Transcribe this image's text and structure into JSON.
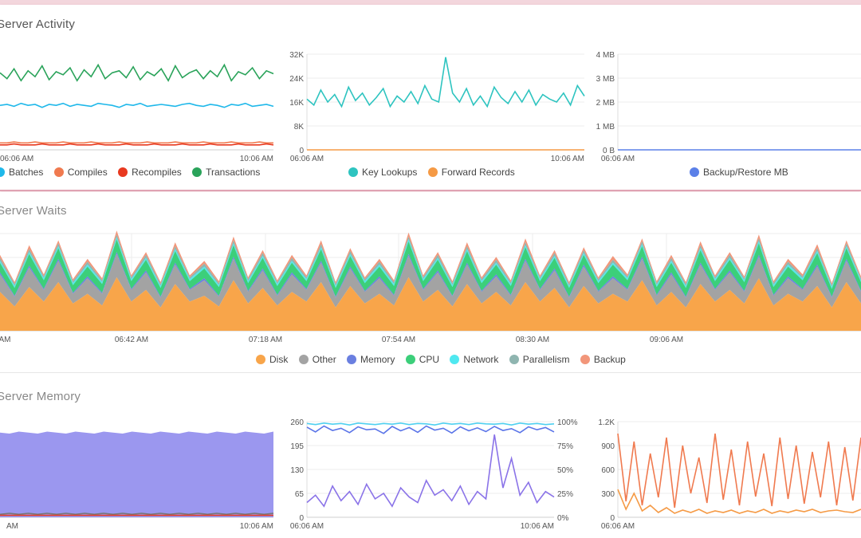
{
  "panels": {
    "activity_title": "Server Activity",
    "waits_title": "Server Waits",
    "memory_title": "Server Memory"
  },
  "chart_data": [
    {
      "id": "activity-1",
      "type": "line",
      "x_tick_labels": [
        "06:06 AM",
        "10:06 AM"
      ],
      "y_range": [
        0,
        100
      ],
      "series": [
        {
          "name": "Batches",
          "color": "#1fb8ea",
          "values": [
            45,
            46,
            44,
            47,
            45,
            46,
            43,
            46,
            45,
            47,
            44,
            46,
            45,
            44,
            47,
            46,
            45,
            43,
            46,
            45,
            47,
            44,
            45,
            46,
            45,
            44,
            46,
            47,
            45,
            44,
            46,
            45,
            43,
            46,
            45,
            47,
            44,
            45,
            46,
            44
          ]
        },
        {
          "name": "Compiles",
          "color": "#f07a4f",
          "values": [
            7,
            7,
            8,
            7,
            7,
            8,
            7,
            7,
            7,
            8,
            7,
            7,
            7,
            8,
            7,
            7,
            7,
            8,
            7,
            7,
            7,
            8,
            7,
            7,
            7,
            8,
            7,
            7,
            7,
            8,
            7,
            7,
            7,
            8,
            7,
            7,
            7,
            8,
            7,
            7
          ]
        },
        {
          "name": "Recompiles",
          "color": "#e8391f",
          "values": [
            5,
            5,
            6,
            5,
            5,
            5,
            6,
            5,
            5,
            5,
            6,
            5,
            5,
            5,
            6,
            5,
            5,
            5,
            6,
            5,
            5,
            5,
            6,
            5,
            5,
            5,
            6,
            5,
            5,
            5,
            6,
            5,
            5,
            5,
            6,
            5,
            5,
            5,
            6,
            5
          ]
        },
        {
          "name": "Transactions",
          "color": "#2aa35a",
          "values": [
            78,
            72,
            82,
            70,
            80,
            74,
            85,
            71,
            79,
            76,
            83,
            70,
            81,
            74,
            86,
            72,
            78,
            80,
            73,
            84,
            71,
            79,
            75,
            82,
            70,
            85,
            73,
            78,
            81,
            72,
            80,
            74,
            86,
            70,
            79,
            76,
            83,
            72,
            80,
            77
          ]
        }
      ]
    },
    {
      "id": "activity-2",
      "type": "line",
      "x_tick_labels": [
        "06:06 AM",
        "10:06 AM"
      ],
      "y_tick_labels": [
        "32K",
        "24K",
        "16K",
        "8K",
        "0"
      ],
      "y_range": [
        0,
        32000
      ],
      "series": [
        {
          "name": "Key Lookups",
          "color": "#2ec4c0",
          "values": [
            17000,
            15000,
            20000,
            16000,
            18500,
            14500,
            21000,
            16500,
            19000,
            15000,
            17500,
            20500,
            14500,
            18000,
            16000,
            19500,
            15500,
            21500,
            17000,
            16000,
            31000,
            19000,
            16000,
            20500,
            15000,
            18000,
            14500,
            21000,
            17500,
            15500,
            19500,
            16000,
            20000,
            15000,
            18500,
            17000,
            16000,
            19000,
            15000,
            21500,
            18000
          ]
        },
        {
          "name": "Forward Records",
          "color": "#f59a45",
          "values": [
            0,
            0,
            0,
            0,
            0,
            0,
            0,
            0,
            0,
            0,
            0,
            0,
            0,
            0,
            0,
            0,
            0,
            0,
            0,
            0,
            0,
            0,
            0,
            0,
            0,
            0,
            0,
            0,
            0,
            0,
            0,
            0,
            0,
            0,
            0,
            0,
            0,
            0,
            0,
            0,
            0
          ]
        }
      ]
    },
    {
      "id": "activity-3",
      "type": "line",
      "x_tick_labels": [
        "06:06 AM"
      ],
      "y_tick_labels": [
        "4 MB",
        "3 MB",
        "2 MB",
        "1 MB",
        "0 B"
      ],
      "y_range": [
        0,
        4
      ],
      "series": [
        {
          "name": "Backup/Restore MB",
          "color": "#5b80e8",
          "values": [
            0,
            0,
            0,
            0,
            0,
            0,
            0,
            0,
            0,
            0,
            0,
            0,
            0,
            0,
            0,
            0,
            0,
            0,
            0,
            0
          ]
        }
      ]
    },
    {
      "id": "waits",
      "type": "area",
      "x_tick_labels": [
        "AM",
        "06:42 AM",
        "07:18 AM",
        "07:54 AM",
        "08:30 AM",
        "09:06 AM"
      ],
      "y_range": [
        0,
        100
      ],
      "stacked": true,
      "series": [
        {
          "name": "Disk",
          "color": "#f8a54a",
          "values": [
            40,
            25,
            45,
            30,
            50,
            28,
            38,
            26,
            55,
            30,
            42,
            24,
            48,
            30,
            36,
            25,
            52,
            28,
            44,
            26,
            40,
            30,
            50,
            24,
            46,
            28,
            38,
            26,
            55,
            30,
            42,
            25,
            48,
            28,
            40,
            26,
            50,
            30,
            44,
            24,
            46,
            28,
            38,
            30,
            52,
            26,
            40,
            24,
            48,
            30,
            42,
            28,
            54,
            26,
            38,
            30,
            46,
            24,
            50,
            28
          ]
        },
        {
          "name": "Other",
          "color": "#a3a3a3",
          "values": [
            18,
            10,
            20,
            12,
            22,
            10,
            16,
            12,
            24,
            12,
            18,
            10,
            20,
            12,
            16,
            10,
            22,
            12,
            18,
            10,
            18,
            12,
            20,
            10,
            18,
            12,
            16,
            10,
            22,
            12,
            18,
            10,
            20,
            12,
            16,
            10,
            22,
            12,
            18,
            10,
            20,
            12,
            16,
            12,
            22,
            10,
            18,
            10,
            20,
            12,
            18,
            12,
            22,
            10,
            16,
            12,
            20,
            10,
            22,
            12
          ]
        },
        {
          "name": "Memory",
          "color": "#6a7fe0",
          "values": [
            2,
            1,
            2,
            1,
            2,
            1,
            2,
            1,
            2,
            1,
            2,
            1,
            2,
            1,
            2,
            1,
            2,
            1,
            2,
            1,
            2,
            1,
            2,
            1,
            2,
            1,
            2,
            1,
            2,
            1,
            2,
            1,
            2,
            1,
            2,
            1,
            2,
            1,
            2,
            1,
            2,
            1,
            2,
            1,
            2,
            1,
            2,
            1,
            2,
            1,
            2,
            1,
            2,
            1,
            2,
            1,
            2,
            1,
            2,
            1
          ]
        },
        {
          "name": "CPU",
          "color": "#3ccf7a",
          "values": [
            10,
            8,
            12,
            9,
            11,
            8,
            10,
            9,
            13,
            8,
            11,
            9,
            12,
            8,
            10,
            9,
            12,
            8,
            11,
            9,
            10,
            8,
            12,
            9,
            11,
            8,
            10,
            9,
            13,
            8,
            11,
            9,
            12,
            8,
            10,
            9,
            12,
            8,
            11,
            9,
            10,
            8,
            12,
            9,
            11,
            8,
            10,
            9,
            13,
            8,
            11,
            9,
            12,
            8,
            10,
            9,
            12,
            8,
            11,
            9
          ]
        },
        {
          "name": "Network",
          "color": "#4fe8f0",
          "values": [
            2,
            2,
            2,
            2,
            2,
            2,
            2,
            2,
            2,
            2,
            2,
            2,
            2,
            2,
            2,
            2,
            2,
            2,
            2,
            2,
            2,
            2,
            2,
            2,
            2,
            2,
            2,
            2,
            2,
            2,
            2,
            2,
            2,
            2,
            2,
            2,
            2,
            2,
            2,
            2,
            2,
            2,
            2,
            2,
            2,
            2,
            2,
            2,
            2,
            2,
            2,
            2,
            2,
            2,
            2,
            2,
            2,
            2,
            2,
            2
          ]
        },
        {
          "name": "Parallelism",
          "color": "#8fb5b0",
          "values": [
            3,
            2,
            3,
            2,
            3,
            2,
            3,
            2,
            3,
            2,
            3,
            2,
            3,
            2,
            3,
            2,
            3,
            2,
            3,
            2,
            3,
            2,
            3,
            2,
            3,
            2,
            3,
            2,
            3,
            2,
            3,
            2,
            3,
            2,
            3,
            2,
            3,
            2,
            3,
            2,
            3,
            2,
            3,
            2,
            3,
            2,
            3,
            2,
            3,
            2,
            3,
            2,
            3,
            2,
            3,
            2,
            3,
            2,
            3,
            2
          ]
        },
        {
          "name": "Backup",
          "color": "#f2967a",
          "values": [
            3,
            2,
            4,
            2,
            3,
            2,
            3,
            2,
            4,
            2,
            3,
            2,
            4,
            2,
            3,
            2,
            4,
            2,
            3,
            2,
            3,
            2,
            4,
            2,
            3,
            2,
            3,
            2,
            4,
            2,
            3,
            2,
            4,
            2,
            3,
            2,
            4,
            2,
            3,
            2,
            3,
            2,
            4,
            2,
            3,
            2,
            3,
            2,
            4,
            2,
            3,
            2,
            4,
            2,
            3,
            2,
            4,
            2,
            3,
            2
          ]
        }
      ]
    },
    {
      "id": "memory-1",
      "type": "area",
      "x_tick_labels": [
        "AM",
        "10:06 AM"
      ],
      "y_range": [
        0,
        100
      ],
      "series": [
        {
          "name": "",
          "color": "#9b97ef",
          "values": [
            85,
            84,
            86,
            85,
            84,
            86,
            85,
            84,
            86,
            85,
            84,
            86,
            85,
            84,
            86,
            85,
            84,
            86,
            85,
            84,
            86,
            85,
            84,
            86,
            85,
            84,
            86,
            85,
            84,
            86
          ]
        },
        {
          "name": "",
          "color": "#777777",
          "values": [
            3,
            4,
            3,
            4,
            3,
            4,
            3,
            4,
            3,
            4,
            3,
            4,
            3,
            4,
            3,
            4,
            3,
            4,
            3,
            4,
            3,
            4,
            3,
            4,
            3,
            4,
            3,
            4,
            3,
            4
          ]
        },
        {
          "name": "",
          "color": "#e8391f",
          "values": [
            2,
            2,
            2,
            2,
            2,
            2,
            2,
            2,
            2,
            2,
            2,
            2,
            2,
            2,
            2,
            2,
            2,
            2,
            2,
            2,
            2,
            2,
            2,
            2,
            2,
            2,
            2,
            2,
            2,
            2
          ]
        }
      ]
    },
    {
      "id": "memory-2",
      "type": "line",
      "x_tick_labels": [
        "06:06 AM",
        "10:06 AM"
      ],
      "y_tick_labels": [
        "260",
        "195",
        "130",
        "65",
        "0"
      ],
      "y2_tick_labels": [
        "100%",
        "75%",
        "50%",
        "25%",
        "0%"
      ],
      "y_range": [
        0,
        260
      ],
      "series": [
        {
          "name": "",
          "color": "#4fd0f0",
          "values": [
            255,
            252,
            256,
            253,
            255,
            251,
            256,
            254,
            252,
            255,
            253,
            256,
            252,
            255,
            254,
            251,
            256,
            253,
            255,
            252,
            256,
            254,
            253,
            255,
            251,
            256,
            253,
            255,
            252,
            254
          ]
        },
        {
          "name": "",
          "color": "#5a74e8",
          "values": [
            245,
            232,
            248,
            236,
            242,
            230,
            246,
            238,
            240,
            228,
            247,
            235,
            244,
            231,
            248,
            237,
            242,
            229,
            246,
            235,
            243,
            233,
            247,
            236,
            241,
            230,
            246,
            238,
            244,
            232
          ]
        },
        {
          "name": "",
          "color": "#8a73e8",
          "values": [
            40,
            60,
            30,
            85,
            45,
            70,
            35,
            90,
            50,
            65,
            30,
            80,
            55,
            40,
            100,
            60,
            75,
            45,
            85,
            35,
            70,
            50,
            225,
            80,
            160,
            60,
            95,
            40,
            70,
            55
          ]
        }
      ]
    },
    {
      "id": "memory-3",
      "type": "line",
      "x_tick_labels": [
        "06:06 AM"
      ],
      "y_tick_labels": [
        "1.2K",
        "900",
        "600",
        "300",
        "0"
      ],
      "y_range": [
        0,
        1200
      ],
      "series": [
        {
          "name": "",
          "color": "#f07a4f",
          "values": [
            1050,
            200,
            950,
            150,
            800,
            250,
            1000,
            120,
            900,
            300,
            750,
            180,
            1050,
            220,
            850,
            150,
            950,
            260,
            800,
            140,
            1000,
            230,
            900,
            170,
            820,
            250,
            950,
            150,
            880,
            210,
            1000
          ]
        },
        {
          "name": "",
          "color": "#f59a45",
          "values": [
            350,
            100,
            300,
            80,
            150,
            60,
            120,
            50,
            90,
            60,
            100,
            50,
            80,
            60,
            90,
            50,
            80,
            60,
            100,
            50,
            80,
            60,
            90,
            70,
            100,
            60,
            80,
            90,
            70,
            60,
            100
          ]
        }
      ]
    }
  ]
}
